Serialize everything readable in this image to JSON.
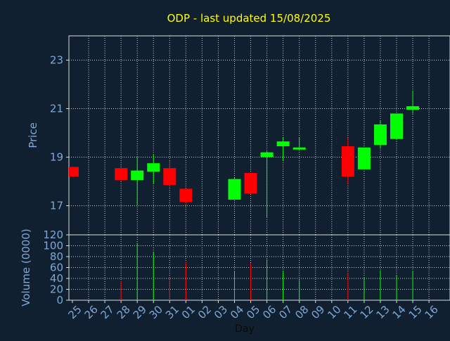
{
  "chart_data": {
    "type": "candlestick",
    "title": "ODP - last updated 15/08/2025",
    "price_axis": {
      "label": "Price",
      "ylim": [
        15.8,
        24
      ],
      "ticks": [
        17,
        19,
        21,
        23
      ]
    },
    "volume_axis": {
      "label": "Volume (0000)",
      "ylim": [
        0,
        120
      ],
      "ticks": [
        0,
        20,
        40,
        60,
        80,
        100,
        120
      ]
    },
    "xlabel": "Day",
    "categories": [
      "25",
      "26",
      "27",
      "28",
      "29",
      "30",
      "31",
      "01",
      "02",
      "03",
      "04",
      "05",
      "06",
      "07",
      "08",
      "09",
      "10",
      "11",
      "12",
      "13",
      "14",
      "15",
      "16"
    ],
    "grid": true,
    "colors": {
      "background": "#102030",
      "title": "#ffff00",
      "axis_text": "#7fa8d6",
      "up": "#00ff00",
      "down": "#ff0000",
      "grid": "#c8c8c8",
      "frame": "#dcdcdc"
    },
    "candles": [
      {
        "day": "25",
        "open": 18.6,
        "high": 18.6,
        "low": 18.2,
        "close": 18.2,
        "volume": 0
      },
      {
        "day": "28",
        "open": 18.55,
        "high": 18.55,
        "low": 18.0,
        "close": 18.05,
        "volume": 35
      },
      {
        "day": "29",
        "open": 18.05,
        "high": 19.0,
        "low": 17.05,
        "close": 18.45,
        "volume": 105
      },
      {
        "day": "30",
        "open": 18.4,
        "high": 19.1,
        "low": 17.9,
        "close": 18.75,
        "volume": 88
      },
      {
        "day": "31",
        "open": 18.55,
        "high": 18.85,
        "low": 17.8,
        "close": 17.85,
        "volume": 42
      },
      {
        "day": "01",
        "open": 17.7,
        "high": 17.7,
        "low": 17.1,
        "close": 17.15,
        "volume": 70
      },
      {
        "day": "04",
        "open": 17.25,
        "high": 18.15,
        "low": 17.25,
        "close": 18.1,
        "volume": 54
      },
      {
        "day": "05",
        "open": 18.35,
        "high": 18.35,
        "low": 17.5,
        "close": 17.5,
        "volume": 68
      },
      {
        "day": "06",
        "open": 19.0,
        "high": 19.25,
        "low": 16.5,
        "close": 19.2,
        "volume": 75
      },
      {
        "day": "07",
        "open": 19.45,
        "high": 19.8,
        "low": 18.85,
        "close": 19.65,
        "volume": 54
      },
      {
        "day": "08",
        "open": 19.35,
        "high": 19.8,
        "low": 19.35,
        "close": 19.4,
        "volume": 37
      },
      {
        "day": "11",
        "open": 19.45,
        "high": 19.8,
        "low": 17.9,
        "close": 18.2,
        "volume": 50
      },
      {
        "day": "12",
        "open": 18.5,
        "high": 19.4,
        "low": 18.5,
        "close": 19.4,
        "volume": 42
      },
      {
        "day": "13",
        "open": 19.5,
        "high": 20.5,
        "low": 19.35,
        "close": 20.35,
        "volume": 55
      },
      {
        "day": "14",
        "open": 19.75,
        "high": 20.8,
        "low": 19.7,
        "close": 20.8,
        "volume": 45
      },
      {
        "day": "15",
        "open": 20.95,
        "high": 21.75,
        "low": 20.8,
        "close": 21.1,
        "volume": 54
      }
    ]
  }
}
